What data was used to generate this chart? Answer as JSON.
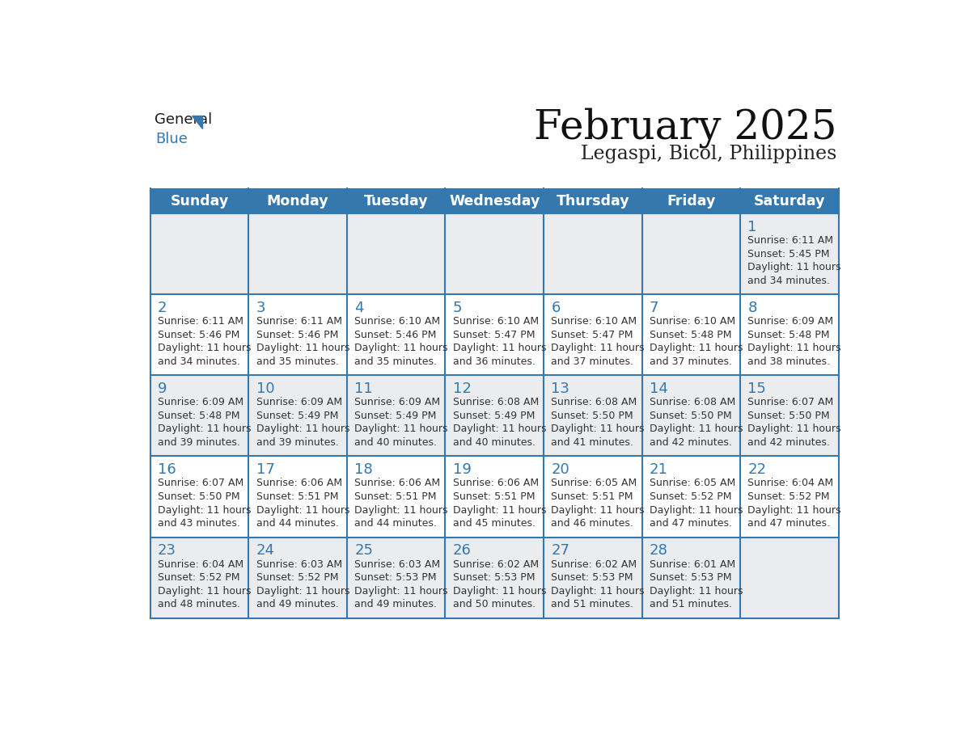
{
  "title": "February 2025",
  "subtitle": "Legaspi, Bicol, Philippines",
  "header_bg": "#3578ae",
  "header_text": "#ffffff",
  "header_days": [
    "Sunday",
    "Monday",
    "Tuesday",
    "Wednesday",
    "Thursday",
    "Friday",
    "Saturday"
  ],
  "cell_bg_light": "#eaecee",
  "cell_bg_white": "#ffffff",
  "cell_border": "#3578ae",
  "day_number_color": "#3578ae",
  "text_color": "#333333",
  "calendar_data": [
    [
      null,
      null,
      null,
      null,
      null,
      null,
      {
        "day": 1,
        "sunrise": "6:11 AM",
        "sunset": "5:45 PM",
        "daylight": "11 hours and 34 minutes."
      }
    ],
    [
      {
        "day": 2,
        "sunrise": "6:11 AM",
        "sunset": "5:46 PM",
        "daylight": "11 hours and 34 minutes."
      },
      {
        "day": 3,
        "sunrise": "6:11 AM",
        "sunset": "5:46 PM",
        "daylight": "11 hours and 35 minutes."
      },
      {
        "day": 4,
        "sunrise": "6:10 AM",
        "sunset": "5:46 PM",
        "daylight": "11 hours and 35 minutes."
      },
      {
        "day": 5,
        "sunrise": "6:10 AM",
        "sunset": "5:47 PM",
        "daylight": "11 hours and 36 minutes."
      },
      {
        "day": 6,
        "sunrise": "6:10 AM",
        "sunset": "5:47 PM",
        "daylight": "11 hours and 37 minutes."
      },
      {
        "day": 7,
        "sunrise": "6:10 AM",
        "sunset": "5:48 PM",
        "daylight": "11 hours and 37 minutes."
      },
      {
        "day": 8,
        "sunrise": "6:09 AM",
        "sunset": "5:48 PM",
        "daylight": "11 hours and 38 minutes."
      }
    ],
    [
      {
        "day": 9,
        "sunrise": "6:09 AM",
        "sunset": "5:48 PM",
        "daylight": "11 hours and 39 minutes."
      },
      {
        "day": 10,
        "sunrise": "6:09 AM",
        "sunset": "5:49 PM",
        "daylight": "11 hours and 39 minutes."
      },
      {
        "day": 11,
        "sunrise": "6:09 AM",
        "sunset": "5:49 PM",
        "daylight": "11 hours and 40 minutes."
      },
      {
        "day": 12,
        "sunrise": "6:08 AM",
        "sunset": "5:49 PM",
        "daylight": "11 hours and 40 minutes."
      },
      {
        "day": 13,
        "sunrise": "6:08 AM",
        "sunset": "5:50 PM",
        "daylight": "11 hours and 41 minutes."
      },
      {
        "day": 14,
        "sunrise": "6:08 AM",
        "sunset": "5:50 PM",
        "daylight": "11 hours and 42 minutes."
      },
      {
        "day": 15,
        "sunrise": "6:07 AM",
        "sunset": "5:50 PM",
        "daylight": "11 hours and 42 minutes."
      }
    ],
    [
      {
        "day": 16,
        "sunrise": "6:07 AM",
        "sunset": "5:50 PM",
        "daylight": "11 hours and 43 minutes."
      },
      {
        "day": 17,
        "sunrise": "6:06 AM",
        "sunset": "5:51 PM",
        "daylight": "11 hours and 44 minutes."
      },
      {
        "day": 18,
        "sunrise": "6:06 AM",
        "sunset": "5:51 PM",
        "daylight": "11 hours and 44 minutes."
      },
      {
        "day": 19,
        "sunrise": "6:06 AM",
        "sunset": "5:51 PM",
        "daylight": "11 hours and 45 minutes."
      },
      {
        "day": 20,
        "sunrise": "6:05 AM",
        "sunset": "5:51 PM",
        "daylight": "11 hours and 46 minutes."
      },
      {
        "day": 21,
        "sunrise": "6:05 AM",
        "sunset": "5:52 PM",
        "daylight": "11 hours and 47 minutes."
      },
      {
        "day": 22,
        "sunrise": "6:04 AM",
        "sunset": "5:52 PM",
        "daylight": "11 hours and 47 minutes."
      }
    ],
    [
      {
        "day": 23,
        "sunrise": "6:04 AM",
        "sunset": "5:52 PM",
        "daylight": "11 hours and 48 minutes."
      },
      {
        "day": 24,
        "sunrise": "6:03 AM",
        "sunset": "5:52 PM",
        "daylight": "11 hours and 49 minutes."
      },
      {
        "day": 25,
        "sunrise": "6:03 AM",
        "sunset": "5:53 PM",
        "daylight": "11 hours and 49 minutes."
      },
      {
        "day": 26,
        "sunrise": "6:02 AM",
        "sunset": "5:53 PM",
        "daylight": "11 hours and 50 minutes."
      },
      {
        "day": 27,
        "sunrise": "6:02 AM",
        "sunset": "5:53 PM",
        "daylight": "11 hours and 51 minutes."
      },
      {
        "day": 28,
        "sunrise": "6:01 AM",
        "sunset": "5:53 PM",
        "daylight": "11 hours and 51 minutes."
      },
      null
    ]
  ]
}
